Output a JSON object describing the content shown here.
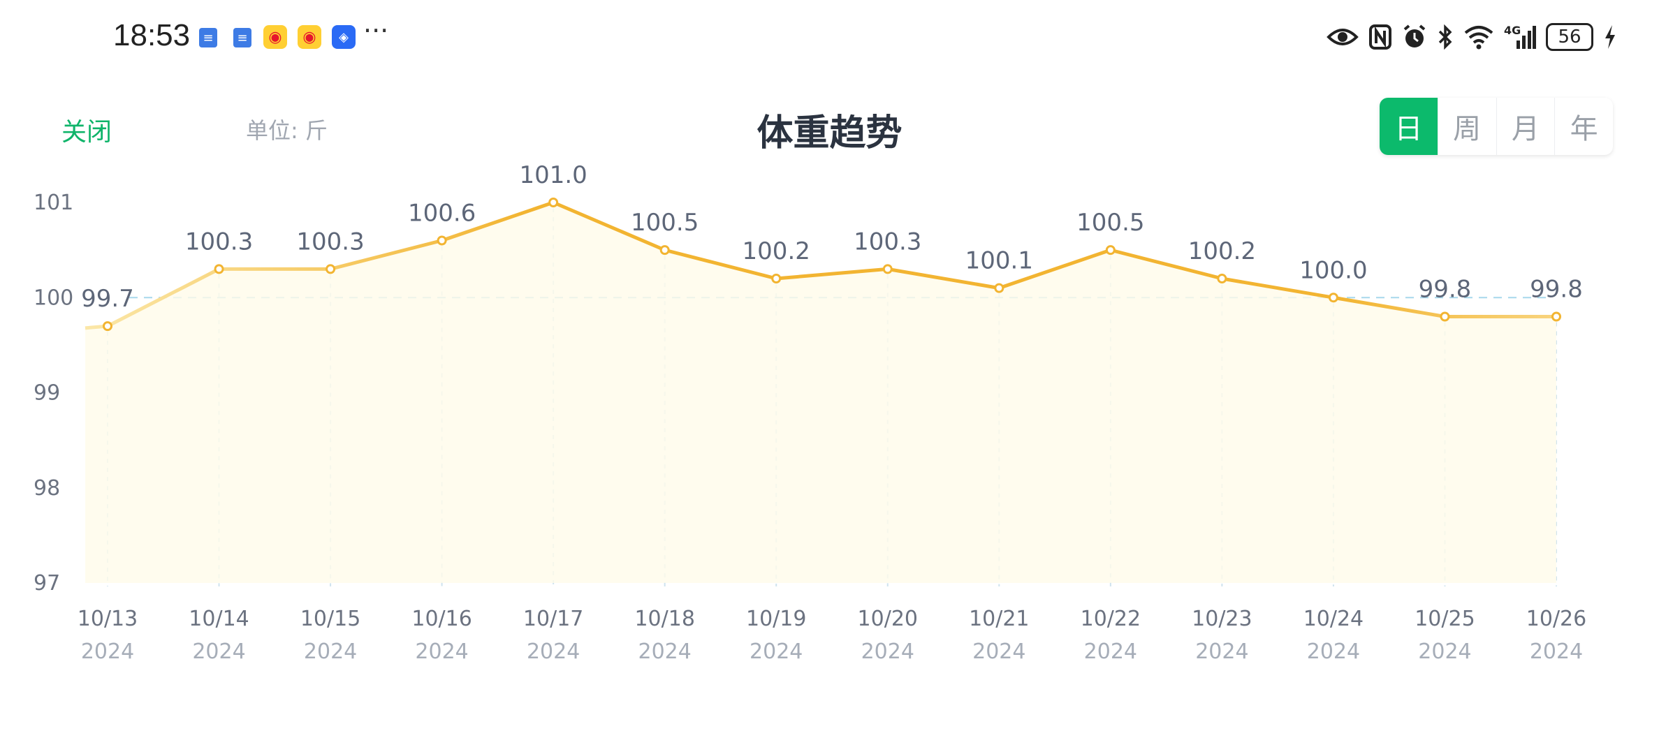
{
  "status_bar": {
    "time": "18:53",
    "more": "···",
    "battery": "56",
    "network": "4G",
    "icons": [
      "eye-icon",
      "nfc-icon",
      "alarm-icon",
      "bluetooth-icon",
      "wifi-icon",
      "signal-icon",
      "battery-icon",
      "charging-icon"
    ]
  },
  "header": {
    "close_label": "关闭",
    "unit_label": "单位:",
    "unit_value": "斤",
    "title": "体重趋势"
  },
  "tabs": [
    {
      "label": "日",
      "active": true
    },
    {
      "label": "周",
      "active": false
    },
    {
      "label": "月",
      "active": false
    },
    {
      "label": "年",
      "active": false
    }
  ],
  "colors": {
    "accent": "#0cba6c",
    "line": "#f2b431",
    "line_light": "#fbe39c",
    "reference_line": "#a7d8ec"
  },
  "chart_data": {
    "type": "line",
    "x": [
      "10/13",
      "10/14",
      "10/15",
      "10/16",
      "10/17",
      "10/18",
      "10/19",
      "10/20",
      "10/21",
      "10/22",
      "10/23",
      "10/24",
      "10/25",
      "10/26"
    ],
    "x_year": [
      "2024",
      "2024",
      "2024",
      "2024",
      "2024",
      "2024",
      "2024",
      "2024",
      "2024",
      "2024",
      "2024",
      "2024",
      "2024",
      "2024"
    ],
    "values": [
      99.7,
      100.3,
      100.3,
      100.6,
      101.0,
      100.5,
      100.2,
      100.3,
      100.1,
      100.5,
      100.2,
      100.0,
      99.8,
      99.8
    ],
    "value_labels": [
      "99.7",
      "100.3",
      "100.3",
      "100.6",
      "101.0",
      "100.5",
      "100.2",
      "100.3",
      "100.1",
      "100.5",
      "100.2",
      "100.0",
      "99.8",
      "99.8"
    ],
    "yticks": [
      "97",
      "98",
      "99",
      "100",
      "101"
    ],
    "ylim": [
      97,
      101
    ],
    "reference_value": 100.0,
    "grid": "vertical dashed"
  }
}
